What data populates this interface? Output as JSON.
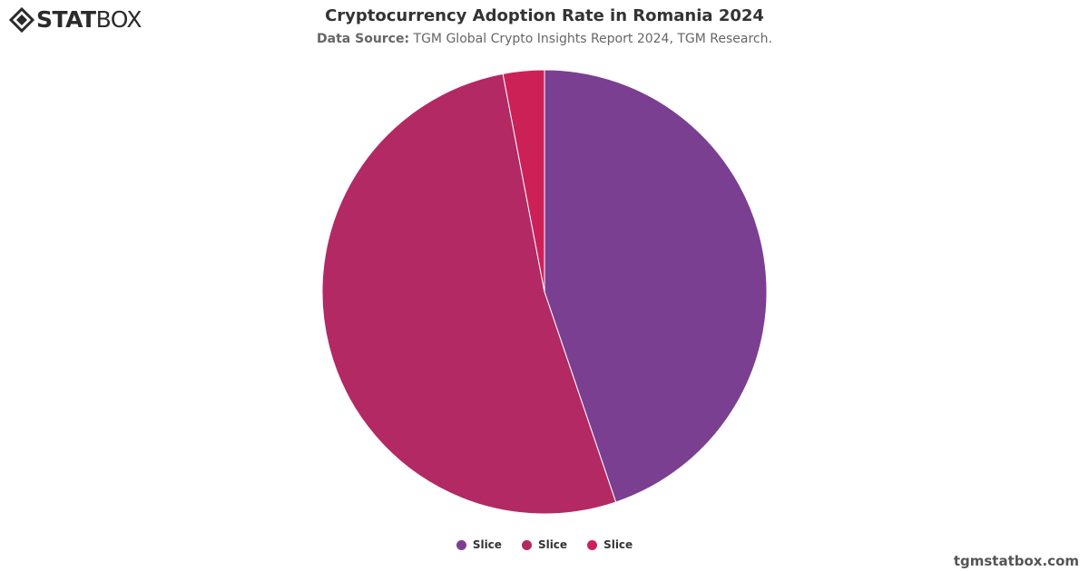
{
  "logo": {
    "text_bold": "STAT",
    "text_light": "BOX"
  },
  "header": {
    "title": "Cryptocurrency Adoption Rate in Romania 2024",
    "source_label": "Data Source:",
    "source_text": "TGM Global Crypto Insights Report 2024, TGM Research."
  },
  "chart_data": {
    "type": "pie",
    "title": "Cryptocurrency Adoption Rate in Romania 2024",
    "start_angle_deg": 0,
    "slices": [
      {
        "label": "Slice",
        "value": 44.8,
        "color": "#7b3f91"
      },
      {
        "label": "Slice",
        "value": 52.2,
        "color": "#b32963"
      },
      {
        "label": "Slice",
        "value": 3.0,
        "color": "#cc2157"
      }
    ],
    "legend_position": "bottom-center"
  },
  "watermark": "tgmstatbox.com"
}
